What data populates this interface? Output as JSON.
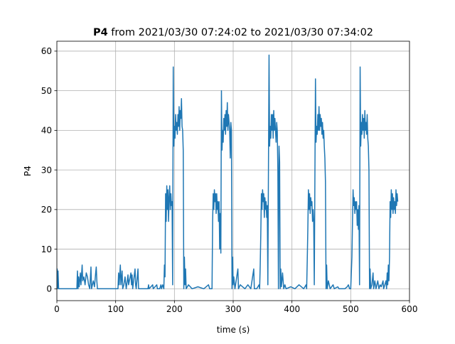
{
  "chart_data": {
    "type": "line",
    "title_bold": "P4",
    "title_rest": " from 2021/03/30 07:24:02 to 2021/03/30 07:34:02",
    "xlabel": "time (s)",
    "ylabel": "P4",
    "xlim": [
      0,
      600
    ],
    "ylim": [
      -3,
      62.5
    ],
    "xticks": [
      0,
      100,
      200,
      300,
      400,
      500,
      600
    ],
    "yticks": [
      0,
      10,
      20,
      30,
      40,
      50,
      60
    ],
    "grid": true,
    "legend": "none",
    "series": [
      {
        "color": "#1f77b4",
        "points": [
          [
            0,
            0
          ],
          [
            0.5,
            5
          ],
          [
            1,
            0
          ],
          [
            2,
            4.5
          ],
          [
            3,
            0
          ],
          [
            10,
            0
          ],
          [
            20,
            0
          ],
          [
            30,
            0
          ],
          [
            34,
            0
          ],
          [
            35,
            4.5
          ],
          [
            36,
            0
          ],
          [
            37,
            3
          ],
          [
            38,
            0.5
          ],
          [
            40,
            4
          ],
          [
            41,
            1
          ],
          [
            43,
            6
          ],
          [
            44,
            2
          ],
          [
            46,
            3
          ],
          [
            48,
            1
          ],
          [
            50,
            4
          ],
          [
            52,
            3
          ],
          [
            54,
            1
          ],
          [
            56,
            0
          ],
          [
            58,
            5.5
          ],
          [
            59,
            0
          ],
          [
            62,
            2
          ],
          [
            64,
            0.5
          ],
          [
            66,
            4
          ],
          [
            67,
            5.5
          ],
          [
            68,
            2
          ],
          [
            69,
            0
          ],
          [
            75,
            0
          ],
          [
            90,
            0
          ],
          [
            100,
            0
          ],
          [
            104,
            0
          ],
          [
            105,
            4
          ],
          [
            106,
            1
          ],
          [
            108,
            6
          ],
          [
            109,
            1
          ],
          [
            111,
            4.5
          ],
          [
            112,
            0
          ],
          [
            114,
            1
          ],
          [
            116,
            3
          ],
          [
            118,
            0
          ],
          [
            121,
            3.5
          ],
          [
            122,
            1
          ],
          [
            124,
            2.5
          ],
          [
            126,
            4
          ],
          [
            127,
            1
          ],
          [
            128,
            3.5
          ],
          [
            129,
            0
          ],
          [
            133,
            5
          ],
          [
            134,
            1
          ],
          [
            135,
            0
          ],
          [
            138,
            5
          ],
          [
            139,
            0
          ],
          [
            145,
            0
          ],
          [
            150,
            0
          ],
          [
            155,
            0
          ],
          [
            156,
            1
          ],
          [
            157,
            0
          ],
          [
            163,
            1
          ],
          [
            164,
            0
          ],
          [
            170,
            1
          ],
          [
            171,
            0
          ],
          [
            175,
            0
          ],
          [
            177,
            1
          ],
          [
            178,
            0
          ],
          [
            180,
            1
          ],
          [
            182,
            0
          ],
          [
            183,
            6
          ],
          [
            184,
            3
          ],
          [
            185,
            24
          ],
          [
            186,
            17
          ],
          [
            187,
            26
          ],
          [
            188,
            20
          ],
          [
            189,
            25
          ],
          [
            190,
            17
          ],
          [
            191,
            23
          ],
          [
            192,
            26
          ],
          [
            193,
            20
          ],
          [
            194,
            24
          ],
          [
            195,
            21
          ],
          [
            196,
            22
          ],
          [
            197,
            1
          ],
          [
            198,
            56
          ],
          [
            199,
            36
          ],
          [
            200,
            41
          ],
          [
            201,
            38
          ],
          [
            202,
            44
          ],
          [
            203,
            40
          ],
          [
            204,
            42
          ],
          [
            205,
            39
          ],
          [
            206,
            44
          ],
          [
            207,
            41
          ],
          [
            208,
            46
          ],
          [
            209,
            40
          ],
          [
            210,
            45
          ],
          [
            211,
            43
          ],
          [
            212,
            48
          ],
          [
            213,
            41
          ],
          [
            214,
            40
          ],
          [
            215,
            35
          ],
          [
            216,
            0
          ],
          [
            217,
            8
          ],
          [
            218,
            1
          ],
          [
            219,
            5
          ],
          [
            220,
            0
          ],
          [
            224,
            1
          ],
          [
            230,
            0
          ],
          [
            240,
            0.5
          ],
          [
            250,
            0
          ],
          [
            258,
            1
          ],
          [
            260,
            0
          ],
          [
            264,
            0
          ],
          [
            265,
            17
          ],
          [
            266,
            24
          ],
          [
            267,
            20
          ],
          [
            268,
            25
          ],
          [
            269,
            22
          ],
          [
            270,
            24
          ],
          [
            271,
            19
          ],
          [
            272,
            24
          ],
          [
            273,
            20
          ],
          [
            274,
            22
          ],
          [
            275,
            17
          ],
          [
            276,
            22
          ],
          [
            277,
            10
          ],
          [
            278,
            19
          ],
          [
            279,
            9
          ],
          [
            280,
            50
          ],
          [
            281,
            35
          ],
          [
            282,
            40
          ],
          [
            283,
            37
          ],
          [
            284,
            43
          ],
          [
            285,
            40
          ],
          [
            286,
            44
          ],
          [
            287,
            39
          ],
          [
            288,
            45
          ],
          [
            289,
            41
          ],
          [
            290,
            47
          ],
          [
            291,
            40
          ],
          [
            292,
            44
          ],
          [
            293,
            42
          ],
          [
            294,
            40
          ],
          [
            295,
            33
          ],
          [
            296,
            42
          ],
          [
            297,
            40
          ],
          [
            298,
            0
          ],
          [
            299,
            8
          ],
          [
            300,
            1
          ],
          [
            301,
            3
          ],
          [
            303,
            0
          ],
          [
            308,
            5
          ],
          [
            309,
            0
          ],
          [
            312,
            1
          ],
          [
            320,
            0
          ],
          [
            325,
            1
          ],
          [
            330,
            0
          ],
          [
            335,
            5
          ],
          [
            336,
            0
          ],
          [
            340,
            0
          ],
          [
            344,
            1
          ],
          [
            345,
            0
          ],
          [
            346,
            6
          ],
          [
            347,
            14
          ],
          [
            348,
            24
          ],
          [
            349,
            20
          ],
          [
            350,
            25
          ],
          [
            351,
            22
          ],
          [
            352,
            24
          ],
          [
            353,
            18
          ],
          [
            354,
            23
          ],
          [
            355,
            20
          ],
          [
            356,
            22
          ],
          [
            357,
            18
          ],
          [
            358,
            21
          ],
          [
            359,
            1
          ],
          [
            361,
            59
          ],
          [
            362,
            36
          ],
          [
            363,
            41
          ],
          [
            364,
            38
          ],
          [
            365,
            44
          ],
          [
            366,
            40
          ],
          [
            367,
            44
          ],
          [
            368,
            38
          ],
          [
            369,
            45
          ],
          [
            370,
            40
          ],
          [
            371,
            43
          ],
          [
            372,
            40
          ],
          [
            373,
            37
          ],
          [
            374,
            42
          ],
          [
            375,
            40
          ],
          [
            376,
            30
          ],
          [
            377,
            0
          ],
          [
            378,
            36
          ],
          [
            379,
            32
          ],
          [
            380,
            0
          ],
          [
            381,
            5
          ],
          [
            382,
            0.5
          ],
          [
            384,
            4
          ],
          [
            386,
            0
          ],
          [
            388,
            1
          ],
          [
            390,
            0
          ],
          [
            398,
            0.5
          ],
          [
            405,
            0
          ],
          [
            412,
            1
          ],
          [
            420,
            0
          ],
          [
            424,
            1
          ],
          [
            425,
            0
          ],
          [
            426,
            7
          ],
          [
            427,
            15
          ],
          [
            428,
            25
          ],
          [
            429,
            20
          ],
          [
            430,
            24
          ],
          [
            431,
            19
          ],
          [
            432,
            23
          ],
          [
            433,
            21
          ],
          [
            434,
            22
          ],
          [
            435,
            17
          ],
          [
            436,
            20
          ],
          [
            437,
            17
          ],
          [
            438,
            1
          ],
          [
            440,
            53
          ],
          [
            441,
            37
          ],
          [
            442,
            41
          ],
          [
            443,
            39
          ],
          [
            444,
            44
          ],
          [
            445,
            40
          ],
          [
            446,
            46
          ],
          [
            447,
            40
          ],
          [
            448,
            44
          ],
          [
            449,
            41
          ],
          [
            450,
            43
          ],
          [
            451,
            39
          ],
          [
            452,
            42
          ],
          [
            453,
            38
          ],
          [
            454,
            40
          ],
          [
            455,
            36
          ],
          [
            456,
            33
          ],
          [
            457,
            27
          ],
          [
            458,
            0
          ],
          [
            459,
            6
          ],
          [
            460,
            0
          ],
          [
            462,
            2
          ],
          [
            465,
            0
          ],
          [
            470,
            1
          ],
          [
            472,
            0
          ],
          [
            478,
            0.5
          ],
          [
            480,
            0
          ],
          [
            490,
            0
          ],
          [
            494,
            0.5
          ],
          [
            496,
            1
          ],
          [
            498,
            0
          ],
          [
            500,
            0
          ],
          [
            502,
            8
          ],
          [
            503,
            17
          ],
          [
            504,
            25
          ],
          [
            505,
            21
          ],
          [
            506,
            23
          ],
          [
            507,
            19
          ],
          [
            508,
            22
          ],
          [
            509,
            20
          ],
          [
            510,
            22
          ],
          [
            511,
            16
          ],
          [
            512,
            20
          ],
          [
            513,
            15
          ],
          [
            514,
            21
          ],
          [
            515,
            1
          ],
          [
            516,
            56
          ],
          [
            517,
            36
          ],
          [
            518,
            42
          ],
          [
            519,
            39
          ],
          [
            520,
            44
          ],
          [
            521,
            40
          ],
          [
            522,
            43
          ],
          [
            523,
            38
          ],
          [
            524,
            45
          ],
          [
            525,
            40
          ],
          [
            526,
            42
          ],
          [
            527,
            39
          ],
          [
            528,
            44
          ],
          [
            529,
            38
          ],
          [
            530,
            36
          ],
          [
            531,
            30
          ],
          [
            532,
            0
          ],
          [
            533,
            5
          ],
          [
            534,
            0
          ],
          [
            536,
            1
          ],
          [
            538,
            4
          ],
          [
            539,
            0
          ],
          [
            541,
            2
          ],
          [
            543,
            0
          ],
          [
            546,
            2
          ],
          [
            548,
            0
          ],
          [
            550,
            1
          ],
          [
            552,
            0.5
          ],
          [
            555,
            2
          ],
          [
            556,
            0
          ],
          [
            558,
            1
          ],
          [
            560,
            2
          ],
          [
            561,
            0
          ],
          [
            562,
            4
          ],
          [
            563,
            1
          ],
          [
            564,
            6
          ],
          [
            565,
            2
          ],
          [
            566,
            8
          ],
          [
            567,
            22
          ],
          [
            568,
            18
          ],
          [
            569,
            25
          ],
          [
            570,
            20
          ],
          [
            571,
            24
          ],
          [
            572,
            19
          ],
          [
            573,
            23
          ],
          [
            574,
            20
          ],
          [
            575,
            22
          ],
          [
            576,
            19
          ],
          [
            577,
            25
          ],
          [
            578,
            21
          ],
          [
            579,
            24
          ],
          [
            580,
            22
          ]
        ]
      }
    ]
  }
}
